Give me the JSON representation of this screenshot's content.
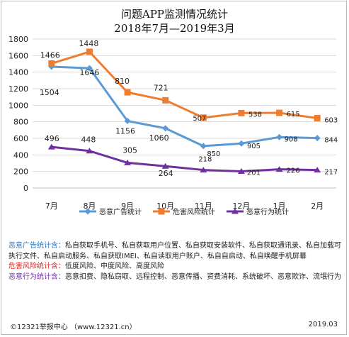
{
  "title": {
    "line1": "问题APP监测情况统计",
    "line2": "2018年7月—2019年3月"
  },
  "chart_data": {
    "type": "line",
    "categories": [
      "7月",
      "8月",
      "9月",
      "10月",
      "11月",
      "12月",
      "1月",
      "2月"
    ],
    "ylim": [
      0,
      1800
    ],
    "yticks": [
      0,
      200,
      400,
      600,
      800,
      1000,
      1200,
      1400,
      1600,
      1800
    ],
    "grid": true,
    "legend_position": "bottom",
    "series": [
      {
        "name": "恶意广告统计",
        "color": "#5b9bd5",
        "marker": "diamond",
        "values": [
          1466,
          1448,
          810,
          721,
          507,
          538,
          615,
          603
        ],
        "labels": [
          "1466",
          "1448",
          "810",
          "721",
          "507",
          "538",
          "615",
          "603"
        ]
      },
      {
        "name": "危害风险统计",
        "color": "#ed7d31",
        "marker": "square",
        "values": [
          1504,
          1646,
          1156,
          1060,
          850,
          905,
          908,
          844
        ],
        "labels": [
          "1504",
          "1646",
          "1156",
          "1060",
          "850",
          "905",
          "908",
          "844"
        ]
      },
      {
        "name": "恶意行为统计",
        "color": "#7030a0",
        "marker": "triangle",
        "values": [
          496,
          448,
          305,
          264,
          218,
          201,
          226,
          217
        ],
        "labels": [
          "496",
          "448",
          "305",
          "264",
          "218",
          "201",
          "226",
          "217"
        ]
      }
    ]
  },
  "notes": {
    "ad_label": "恶意广告统计含：",
    "ad_text": "私自获取手机号、私自获取用户位置、私自获取安装软件、私自获取通讯录、私自加载可执行文件、私自启动服务、私自获取IMEI、私自读取用户账户、私自自启动、私自唤醒手机屏幕",
    "risk_label": "危害风险统计含：",
    "risk_text": "低度风险、中度风险、高度风险",
    "behavior_label": "恶意行为统计含：",
    "behavior_text": "恶意扣费、隐私窃取、远程控制、恶意传播、资费消耗、系统破坏、恶意欺诈、流氓行为"
  },
  "footer": {
    "left": "©12321举报中心 （www.12321.cn）",
    "right": "2019.03"
  }
}
